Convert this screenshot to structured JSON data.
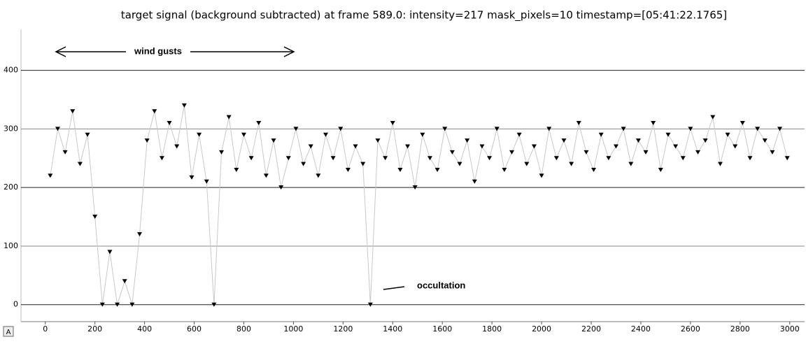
{
  "chart_data": {
    "type": "line",
    "title": "target signal (background subtracted) at frame 589.0: intensity=217 mask_pixels=10 timestamp=[05:41:22.1765]",
    "x": [
      20,
      50,
      80,
      110,
      140,
      170,
      200,
      230,
      260,
      290,
      320,
      350,
      380,
      410,
      440,
      470,
      500,
      530,
      560,
      590,
      620,
      650,
      680,
      710,
      740,
      770,
      800,
      830,
      860,
      890,
      920,
      950,
      980,
      1010,
      1040,
      1070,
      1100,
      1130,
      1160,
      1190,
      1220,
      1250,
      1280,
      1310,
      1340,
      1370,
      1400,
      1430,
      1460,
      1490,
      1520,
      1550,
      1580,
      1610,
      1640,
      1670,
      1700,
      1730,
      1760,
      1790,
      1820,
      1850,
      1880,
      1910,
      1940,
      1970,
      2000,
      2030,
      2060,
      2090,
      2120,
      2150,
      2180,
      2210,
      2240,
      2270,
      2300,
      2330,
      2360,
      2390,
      2420,
      2450,
      2480,
      2510,
      2540,
      2570,
      2600,
      2630,
      2660,
      2690,
      2720,
      2750,
      2780,
      2810,
      2840,
      2870,
      2900,
      2930,
      2960,
      2990
    ],
    "series": [
      {
        "color": "#000000",
        "line_color": "#c8c8c8",
        "values": [
          220,
          300,
          260,
          330,
          240,
          290,
          150,
          0,
          90,
          0,
          40,
          0,
          120,
          280,
          330,
          250,
          310,
          270,
          340,
          217,
          290,
          210,
          0,
          260,
          320,
          230,
          290,
          250,
          310,
          220,
          280,
          200,
          250,
          300,
          240,
          270,
          220,
          290,
          250,
          300,
          230,
          270,
          240,
          0,
          280,
          250,
          310,
          230,
          270,
          200,
          290,
          250,
          230,
          300,
          260,
          240,
          280,
          210,
          270,
          250,
          300,
          230,
          260,
          290,
          240,
          270,
          220,
          300,
          250,
          280,
          240,
          310,
          260,
          230,
          290,
          250,
          270,
          300,
          240,
          280,
          260,
          310,
          230,
          290,
          270,
          250,
          300,
          260,
          280,
          320,
          240,
          290,
          270,
          310,
          250,
          300,
          280,
          260,
          300,
          250
        ]
      }
    ],
    "xlim": [
      -98,
      3060
    ],
    "ylim": [
      -29,
      470
    ],
    "xticks": [
      0,
      200,
      400,
      600,
      800,
      1000,
      1200,
      1400,
      1600,
      1800,
      2000,
      2200,
      2400,
      2600,
      2800,
      3000
    ],
    "yticks": [
      0,
      100,
      200,
      300,
      400
    ],
    "grid": true,
    "annotations": [
      "wind gusts",
      "occultation"
    ]
  }
}
